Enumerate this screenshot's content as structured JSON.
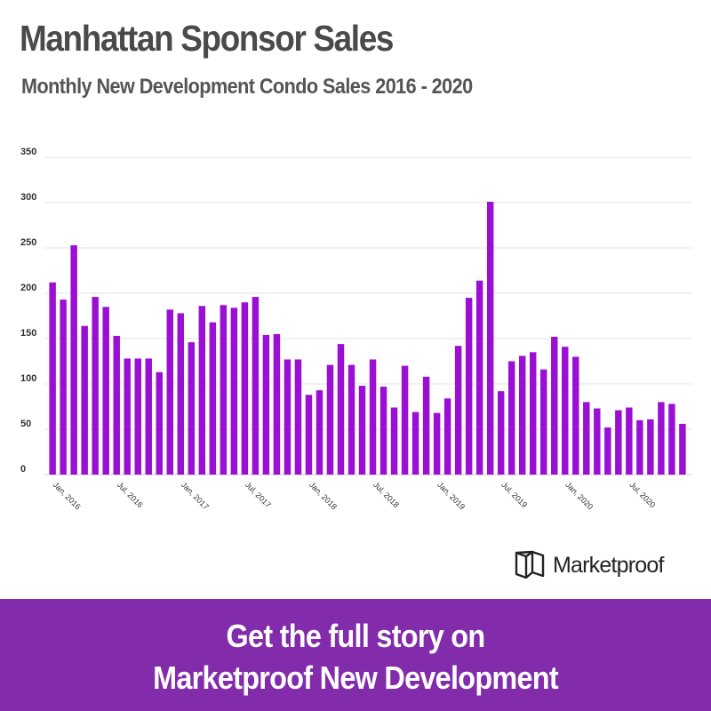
{
  "header": {
    "title": "Manhattan Sponsor Sales",
    "subtitle": "Monthly New Development Condo Sales 2016 - 2020"
  },
  "logo": {
    "text": "Marketproof",
    "icon": "marketproof-logo-icon"
  },
  "cta": {
    "line1": "Get the full story on",
    "line2": "Marketproof New Development",
    "background": "#822bab"
  },
  "chart_data": {
    "type": "bar",
    "title": "Manhattan Sponsor Sales",
    "subtitle": "Monthly New Development Condo Sales 2016 - 2020",
    "xlabel": "",
    "ylabel": "",
    "ylim": [
      0,
      350
    ],
    "yticks": [
      0,
      50,
      100,
      150,
      200,
      250,
      300,
      350
    ],
    "grid": true,
    "bar_color": "#9b0fd4",
    "x_tick_labels": [
      {
        "index": 0,
        "label": "Jan, 2016"
      },
      {
        "index": 6,
        "label": "Jul, 2016"
      },
      {
        "index": 12,
        "label": "Jan, 2017"
      },
      {
        "index": 18,
        "label": "Jul, 2017"
      },
      {
        "index": 24,
        "label": "Jan, 2018"
      },
      {
        "index": 30,
        "label": "Jul, 2018"
      },
      {
        "index": 36,
        "label": "Jan, 2019"
      },
      {
        "index": 42,
        "label": "Jul, 2019"
      },
      {
        "index": 48,
        "label": "Jan, 2020"
      },
      {
        "index": 54,
        "label": "Jul, 2020"
      }
    ],
    "values": [
      212,
      193,
      253,
      164,
      196,
      185,
      153,
      128,
      128,
      128,
      113,
      182,
      178,
      146,
      186,
      168,
      187,
      184,
      190,
      196,
      154,
      155,
      127,
      127,
      88,
      93,
      121,
      144,
      121,
      98,
      127,
      97,
      74,
      120,
      69,
      108,
      68,
      84,
      142,
      195,
      214,
      301,
      92,
      125,
      131,
      135,
      116,
      152,
      141,
      130,
      80,
      73,
      52,
      71,
      74,
      60,
      61,
      80,
      78,
      56
    ]
  }
}
